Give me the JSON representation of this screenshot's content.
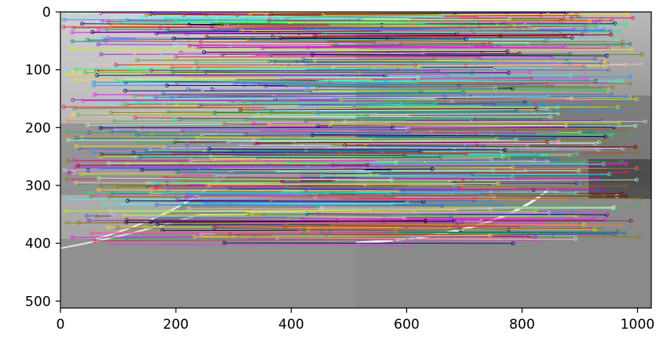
{
  "figure": {
    "description_free": true,
    "image_extent": {
      "x": [
        0,
        1024
      ],
      "y": [
        512,
        0
      ]
    },
    "x_axis": {
      "ticks": [
        0,
        200,
        400,
        600,
        800,
        1000
      ],
      "tick_labels": [
        "0",
        "200",
        "400",
        "600",
        "800",
        "1000"
      ]
    },
    "y_axis": {
      "ticks": [
        0,
        100,
        200,
        300,
        400,
        500
      ],
      "tick_labels": [
        "0",
        "100",
        "200",
        "300",
        "400",
        "500"
      ]
    },
    "seam_x": 512,
    "colors": {
      "frame": "#000000",
      "sky_left": "#bdbdbd",
      "sky_right": "#9a9a9a",
      "road": "#8f8f8f",
      "grass": "#6e6e6e",
      "match_palette": [
        "#e6194b",
        "#3cb44b",
        "#ffe119",
        "#4363d8",
        "#f58231",
        "#911eb4",
        "#46f0f0",
        "#f032e6",
        "#bcf60c",
        "#fabebe",
        "#008080",
        "#e6beff",
        "#9a6324",
        "#aaffc3",
        "#800000",
        "#808000",
        "#000075",
        "#ff00ff",
        "#00ff7f",
        "#1e90ff"
      ]
    },
    "match_count_estimate": 520
  }
}
